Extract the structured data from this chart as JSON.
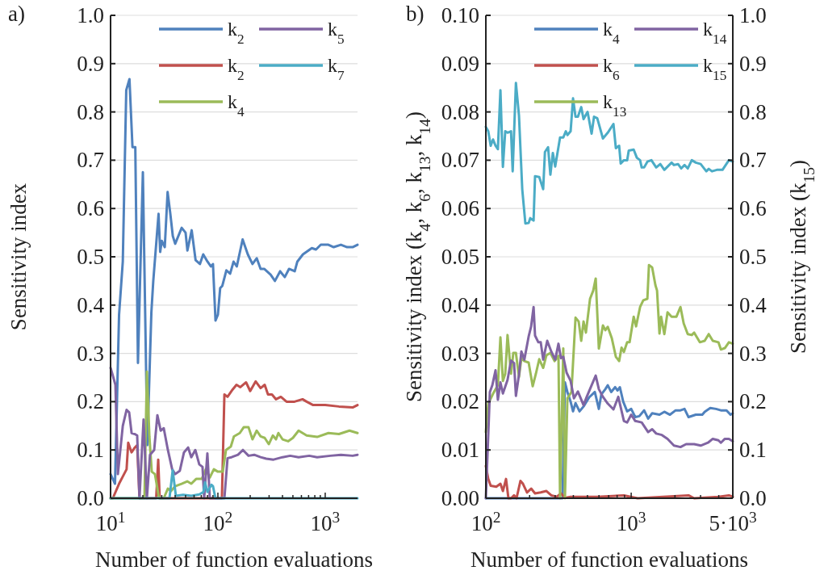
{
  "chart_data": [
    {
      "type": "line",
      "title": "a)",
      "xlabel": "Number of function evaluations",
      "ylabel": "Sensitivity index",
      "log": "x",
      "grid": "y",
      "legend": "top right",
      "xlim": [
        10,
        2000
      ],
      "xticks": [
        {
          "value": 10,
          "label": "10$^{1}$"
        },
        {
          "value": 20,
          "label": null
        },
        {
          "value": 30,
          "label": null
        },
        {
          "value": 40,
          "label": null
        },
        {
          "value": 50,
          "label": null
        },
        {
          "value": 60,
          "label": null
        },
        {
          "value": 70,
          "label": null
        },
        {
          "value": 80,
          "label": null
        },
        {
          "value": 90,
          "label": null
        },
        {
          "value": 100,
          "label": "10$^{2}$"
        },
        {
          "value": 200,
          "label": null
        },
        {
          "value": 300,
          "label": null
        },
        {
          "value": 400,
          "label": null
        },
        {
          "value": 500,
          "label": null
        },
        {
          "value": 600,
          "label": null
        },
        {
          "value": 700,
          "label": null
        },
        {
          "value": 800,
          "label": null
        },
        {
          "value": 900,
          "label": null
        },
        {
          "value": 1000,
          "label": "10$^{3}$"
        }
      ],
      "ylim": [
        0,
        1
      ],
      "yticks": [
        {
          "value": 0,
          "label": "0.0"
        },
        0.1,
        0.2,
        0.3,
        0.4,
        0.5,
        0.6,
        0.7,
        0.8,
        0.9,
        {
          "value": 1,
          "label": "1.0"
        }
      ],
      "series": [
        {
          "name": "k$_{2}$",
          "color": "#4f81bd",
          "x": [
            10,
            11,
            12,
            13,
            14,
            15,
            16,
            17,
            18,
            20,
            22,
            24,
            25,
            28,
            29,
            30,
            32,
            34,
            36,
            38,
            40,
            46,
            50,
            52,
            57,
            62,
            68,
            73,
            80,
            86,
            90,
            95,
            100,
            105,
            110,
            120,
            130,
            140,
            150,
            170,
            190,
            210,
            230,
            250,
            270,
            310,
            340,
            380,
            420,
            460,
            520,
            550,
            620,
            750,
            820,
            910,
            1070,
            1200,
            1400,
            1600,
            1800,
            2000
          ],
          "values": [
            0.05,
            0.03,
            0.38,
            0.49,
            0.845,
            0.868,
            0.727,
            0.727,
            0.28,
            0.675,
            0.11,
            0.385,
            0.45,
            0.589,
            0.51,
            0.533,
            0.52,
            0.634,
            0.59,
            0.543,
            0.527,
            0.56,
            0.55,
            0.513,
            0.555,
            0.493,
            0.485,
            0.505,
            0.49,
            0.48,
            0.485,
            0.368,
            0.38,
            0.435,
            0.44,
            0.472,
            0.465,
            0.49,
            0.48,
            0.536,
            0.505,
            0.485,
            0.497,
            0.475,
            0.475,
            0.463,
            0.45,
            0.47,
            0.458,
            0.475,
            0.47,
            0.49,
            0.505,
            0.518,
            0.515,
            0.525,
            0.525,
            0.52,
            0.525,
            0.52,
            0.52,
            0.525
          ]
        },
        {
          "name": "k$_{2}$",
          "color": "#c0504d",
          "x": [
            10,
            10.5,
            12,
            13,
            14.1,
            14.6,
            15.7,
            16.8,
            17.7,
            18.6,
            26.6,
            27.8,
            28.7,
            109,
            115,
            123,
            137,
            149,
            162,
            183,
            200,
            225,
            250,
            273,
            293,
            319,
            348,
            386,
            436,
            518,
            615,
            671,
            771,
            1000,
            1342,
            1802,
            2000
          ],
          "values": [
            0,
            0,
            0.03,
            0.045,
            0.06,
            0.115,
            0.095,
            0.105,
            0.11,
            0,
            0,
            0.08,
            0,
            0,
            0.215,
            0.21,
            0.225,
            0.235,
            0.23,
            0.24,
            0.222,
            0.242,
            0.228,
            0.235,
            0.215,
            0.215,
            0.205,
            0.21,
            0.2,
            0.2,
            0.205,
            0.2,
            0.193,
            0.193,
            0.19,
            0.188,
            0.193
          ]
        },
        {
          "name": "k$_{4}$",
          "color": "#9bbb59",
          "x": [
            10,
            20.7,
            21.8,
            23,
            24.2,
            25.9,
            28.3,
            31.3,
            34.2,
            36.6,
            40,
            45.9,
            51.8,
            56.5,
            62.7,
            70.8,
            77.1,
            84.1,
            91.7,
            100,
            111,
            119,
            132,
            141,
            160,
            174,
            193,
            210,
            230,
            250,
            273,
            298,
            325,
            348,
            366,
            400,
            451,
            500,
            565,
            671,
            841,
            1072,
            1342,
            1683,
            2000
          ],
          "values": [
            0,
            0,
            0.262,
            0.128,
            0.055,
            0.05,
            0,
            0,
            0.02,
            0.015,
            0.025,
            0.03,
            0.035,
            0.03,
            0.04,
            0.04,
            0.06,
            0.043,
            0.06,
            0.055,
            0.055,
            0.1,
            0.107,
            0.128,
            0.135,
            0.147,
            0.147,
            0.122,
            0.14,
            0.128,
            0.125,
            0.112,
            0.13,
            0.122,
            0.135,
            0.122,
            0.118,
            0.125,
            0.14,
            0.13,
            0.127,
            0.135,
            0.133,
            0.14,
            0.135
          ]
        },
        {
          "name": "k$_{5}$",
          "color": "#8064a2",
          "x": [
            10,
            11.1,
            11.7,
            13,
            14.1,
            14.9,
            15.7,
            16.8,
            17.7,
            18.6,
            20.3,
            21.8,
            23.3,
            25.5,
            27.3,
            29.3,
            31.3,
            34.2,
            37.5,
            40,
            44.2,
            48.3,
            52.8,
            56.5,
            61.6,
            67.1,
            71.9,
            74.5,
            79.8,
            84.1,
            115,
            123,
            134,
            154,
            171,
            193,
            218,
            250,
            282,
            330,
            400,
            472,
            565,
            710,
            841,
            1118,
            1400,
            1802,
            2000
          ],
          "values": [
            0.27,
            0.235,
            0.05,
            0.15,
            0.183,
            0.178,
            0.135,
            0.133,
            0.13,
            0,
            0.163,
            0,
            0.09,
            0.1,
            0.172,
            0.14,
            0.145,
            0.1,
            0.06,
            0.05,
            0.057,
            0.095,
            0.105,
            0.085,
            0.1,
            0.07,
            0.065,
            0,
            0.093,
            0,
            0,
            0.083,
            0.085,
            0.09,
            0.1,
            0.088,
            0.09,
            0.085,
            0.082,
            0.08,
            0.085,
            0.088,
            0.085,
            0.088,
            0.085,
            0.088,
            0.09,
            0.088,
            0.09
          ]
        },
        {
          "name": "k$_{7}$",
          "color": "#4bacc6",
          "x": [
            10,
            35.4,
            37.9,
            40.6,
            47.5,
            56.5,
            67.1,
            73.3,
            75.9,
            79.8,
            87.1,
            90,
            94.9,
            2000
          ],
          "values": [
            0,
            0,
            0.058,
            0.005,
            0.007,
            0.005,
            0.008,
            0.013,
            0.033,
            0.013,
            0.028,
            0.025,
            0,
            0
          ]
        }
      ]
    },
    {
      "type": "line",
      "title": "b)",
      "xlabel": "Number of function evaluations",
      "ylabel": "Sensitivity index (k$_{4}$, k$_{6}$, k$_{13}$, k$_{14}$)",
      "y2label": "Sensitivity index (k$_{15}$)",
      "log": "x",
      "grid": "y",
      "legend": "top right",
      "xlim": [
        100,
        5000
      ],
      "xticks": [
        {
          "value": 100,
          "label": "10$^{2}$"
        },
        {
          "value": 200,
          "label": null
        },
        {
          "value": 300,
          "label": null
        },
        {
          "value": 400,
          "label": null
        },
        {
          "value": 500,
          "label": null
        },
        {
          "value": 600,
          "label": null
        },
        {
          "value": 700,
          "label": null
        },
        {
          "value": 800,
          "label": null
        },
        {
          "value": 900,
          "label": null
        },
        {
          "value": 1000,
          "label": "10$^{3}$"
        },
        {
          "value": 2000,
          "label": null
        },
        {
          "value": 3000,
          "label": null
        },
        {
          "value": 4000,
          "label": null
        },
        {
          "value": 5000,
          "label": "5·10$^{3}$"
        }
      ],
      "ylim": [
        0,
        0.1
      ],
      "yticks": [
        {
          "value": 0,
          "label": "0.00"
        },
        0.01,
        0.02,
        0.03,
        0.04,
        0.05,
        0.06,
        0.07,
        0.08,
        0.09,
        {
          "value": 0.1,
          "label": "0.10"
        }
      ],
      "y2lim": [
        0,
        1
      ],
      "y2ticks": [
        {
          "value": 0,
          "label": "0.0"
        },
        0.1,
        0.2,
        0.3,
        0.4,
        0.5,
        0.6,
        0.7,
        0.8,
        0.9,
        {
          "value": 1,
          "label": "1.0"
        }
      ],
      "series": [
        {
          "name": "k$_{4}$",
          "color": "#4f81bd",
          "x": [
            100,
            337,
            350,
            364,
            383,
            398,
            414,
            441,
            470,
            514,
            562,
            599,
            623,
            664,
            690,
            728,
            775,
            805,
            836,
            881,
            938,
            1000,
            1066,
            1136,
            1227,
            1308,
            1394,
            1565,
            1690,
            1848,
            2021,
            2183,
            2327,
            2480,
            2783,
            3083,
            3204,
            3500,
            3831,
            4140,
            4525,
            4823,
            5000
          ],
          "values": [
            0,
            0,
            0.024,
            0.022,
            0.02,
            0.018,
            0.0197,
            0.018,
            0.019,
            0.0209,
            0.022,
            0.0185,
            0.0215,
            0.0226,
            0.0234,
            0.022,
            0.023,
            0.0223,
            0.023,
            0.02,
            0.018,
            0.0185,
            0.0168,
            0.017,
            0.0182,
            0.0165,
            0.0176,
            0.0173,
            0.0179,
            0.0173,
            0.0182,
            0.0182,
            0.0185,
            0.0168,
            0.0173,
            0.0173,
            0.0179,
            0.0187,
            0.0185,
            0.0182,
            0.0182,
            0.0173,
            0.0176
          ]
        },
        {
          "name": "k$_{6}$",
          "color": "#c0504d",
          "x": [
            100,
            103.9,
            108,
            118,
            126,
            131,
            137.7,
            143,
            149,
            156.4,
            162.6,
            173,
            180,
            192,
            205,
            218,
            238.6,
            261,
            282,
            308,
            329,
            350,
            383,
            584,
            891,
            1107,
            2480,
            2712,
            3981,
            4700,
            5000
          ],
          "values": [
            0.0067,
            0.004,
            0.0026,
            0.0024,
            0.003,
            0.0015,
            0.004,
            0,
            0,
            0.0006,
            0,
            0.0036,
            0.003,
            0.0012,
            0.002,
            0.001,
            0.0012,
            0.0015,
            0.0006,
            0.0003,
            0.001,
            0.0001,
            0.0003,
            0.0003,
            0.0006,
            0,
            0.0006,
            0,
            0.0003,
            0.0006,
            0.0003
          ]
        },
        {
          "name": "k$_{13}$",
          "color": "#9bbb59",
          "x": [
            100,
            103.9,
            113.7,
            121,
            126,
            131,
            136,
            141,
            149,
            154.5,
            161,
            169,
            175.6,
            184,
            197,
            210,
            221,
            233,
            248,
            261,
            278,
            297,
            316,
            324,
            341,
            350,
            364,
            388,
            414,
            435,
            453,
            470,
            488,
            521,
            548,
            570,
            599,
            639,
            664,
            690,
            736,
            784,
            826,
            858,
            891,
            938,
            975,
            1040,
            1080,
            1151,
            1211,
            1292,
            1325,
            1394,
            1468,
            1506,
            1565,
            1606,
            1690,
            1778,
            1896,
            2047,
            2183,
            2297,
            2449,
            2611,
            2712,
            2967,
            3204,
            3415,
            3641,
            3981,
            4140,
            4409,
            4700,
            5000
          ],
          "values": [
            0.0137,
            0.0196,
            0.022,
            0.0234,
            0.0333,
            0.0243,
            0.0258,
            0.0338,
            0.0258,
            0.0301,
            0.0301,
            0.0251,
            0.029,
            0.0284,
            0.0281,
            0.0232,
            0.0258,
            0.0288,
            0.027,
            0.0296,
            0.0301,
            0.0284,
            0.0295,
            0,
            0.031,
            0,
            0.0207,
            0.022,
            0.0374,
            0.0366,
            0.0326,
            0.0366,
            0.0343,
            0.0413,
            0.043,
            0.0455,
            0.031,
            0.0358,
            0.0348,
            0.0355,
            0.0331,
            0.0293,
            0.0284,
            0.0312,
            0.0303,
            0.0323,
            0.0323,
            0.0376,
            0.0356,
            0.0396,
            0.041,
            0.0413,
            0.0483,
            0.0478,
            0.0441,
            0.043,
            0.0341,
            0.0376,
            0.034,
            0.0385,
            0.0376,
            0.0376,
            0.0396,
            0.0362,
            0.034,
            0.0338,
            0.0343,
            0.0323,
            0.0326,
            0.034,
            0.0326,
            0.0323,
            0.0308,
            0.0311,
            0.0323,
            0.032
          ]
        },
        {
          "name": "k$_{14}$",
          "color": "#8064a2",
          "x": [
            100,
            106.6,
            110.8,
            116.6,
            121,
            126,
            131,
            141,
            149,
            156.4,
            161,
            169,
            175.6,
            184,
            197,
            204.7,
            213,
            218,
            229.7,
            238.6,
            248,
            264.4,
            281.8,
            300,
            316,
            328.6,
            341,
            359.4,
            383,
            403.6,
            430,
            470,
            494.5,
            534,
            570,
            599,
            639,
            690,
            755,
            814.7,
            891,
            938,
            1000,
            1066,
            1181,
            1308,
            1394,
            1486,
            1626,
            1778,
            1968,
            2183,
            2387,
            2712,
            3006,
            3373,
            3641,
            3981,
            4140,
            4409,
            4700,
            5000
          ],
          "values": [
            0,
            0.022,
            0.0234,
            0.0265,
            0.0204,
            0.024,
            0.0217,
            0.0245,
            0.0285,
            0.028,
            0.0212,
            0.0256,
            0.0304,
            0.0287,
            0.0335,
            0.0355,
            0.0396,
            0.0337,
            0.0323,
            0.0323,
            0.0287,
            0.0326,
            0.0304,
            0.0287,
            0.032,
            0.029,
            0.0293,
            0.026,
            0.0243,
            0.0207,
            0.0221,
            0.0193,
            0.021,
            0.0234,
            0.0254,
            0.0226,
            0.021,
            0.0196,
            0.0184,
            0.021,
            0.016,
            0.0157,
            0.0173,
            0.016,
            0.0157,
            0.0137,
            0.0143,
            0.0134,
            0.0131,
            0.0123,
            0.0109,
            0.0106,
            0.0112,
            0.0112,
            0.0109,
            0.0115,
            0.0123,
            0.012,
            0.0115,
            0.0123,
            0.0123,
            0.0118
          ]
        },
        {
          "name": "k$_{15}$",
          "color": "#4bacc6",
          "axis": "y2",
          "x": [
            100,
            103.9,
            108,
            112,
            116.6,
            121,
            126,
            131,
            136,
            141,
            149,
            153,
            161,
            169,
            178,
            187,
            197,
            202,
            213,
            218,
            233,
            248,
            255,
            268,
            278,
            289,
            300,
            324,
            341,
            355,
            364,
            383,
            398,
            414,
            430,
            453,
            470,
            501,
            534,
            555,
            584,
            639,
            690,
            755,
            784,
            826,
            847,
            891,
            938,
            962,
            1040,
            1094,
            1151,
            1181,
            1227,
            1292,
            1377,
            1486,
            1585,
            1690,
            1896,
            1968,
            2100,
            2210,
            2327,
            2449,
            2611,
            2783,
            3006,
            3287,
            3415,
            3594,
            3882,
            4246,
            4700,
            5000
          ],
          "values": [
            0.769,
            0.76,
            0.73,
            0.743,
            0.73,
            0.723,
            0.845,
            0.686,
            0.76,
            0.757,
            0.76,
            0.677,
            0.86,
            0.793,
            0.64,
            0.569,
            0.57,
            0.58,
            0.575,
            0.667,
            0.665,
            0.64,
            0.717,
            0.727,
            0.67,
            0.715,
            0.687,
            0.747,
            0.747,
            0.76,
            0.752,
            0.76,
            0.828,
            0.79,
            0.79,
            0.81,
            0.785,
            0.8,
            0.755,
            0.79,
            0.787,
            0.745,
            0.757,
            0.775,
            0.725,
            0.73,
            0.693,
            0.7,
            0.7,
            0.72,
            0.722,
            0.705,
            0.7,
            0.685,
            0.685,
            0.697,
            0.7,
            0.685,
            0.692,
            0.68,
            0.695,
            0.69,
            0.692,
            0.683,
            0.69,
            0.683,
            0.7,
            0.695,
            0.692,
            0.677,
            0.682,
            0.677,
            0.68,
            0.68,
            0.7,
            0.697
          ]
        }
      ]
    }
  ]
}
